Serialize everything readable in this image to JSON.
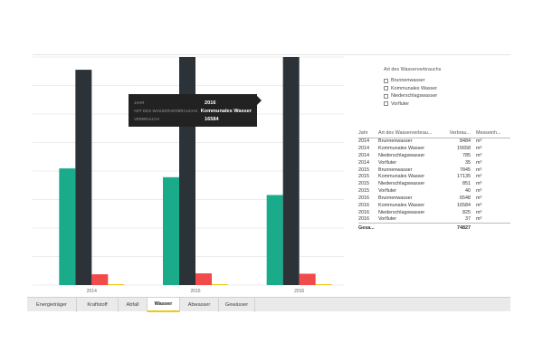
{
  "chart_data": {
    "type": "bar",
    "categories": [
      "2014",
      "2015",
      "2016"
    ],
    "series": [
      {
        "name": "Brunnenwasser",
        "color": "#1aab8b",
        "values": [
          8484,
          7845,
          6548
        ]
      },
      {
        "name": "Kommunales Wasser",
        "color": "#2b3338",
        "values": [
          15658,
          17135,
          16584
        ]
      },
      {
        "name": "Niederschlagswasser",
        "color": "#f04a4a",
        "values": [
          785,
          851,
          825
        ]
      },
      {
        "name": "Vorfluter",
        "color": "#f2c811",
        "values": [
          35,
          40,
          37
        ]
      }
    ],
    "ylim": [
      0,
      16584
    ],
    "grid": true
  },
  "tooltip": {
    "rows": [
      {
        "label": "JAHR",
        "value": "2016"
      },
      {
        "label": "ART DES WASSERVERBRAUCHS",
        "value": "Kommunales Wasser"
      },
      {
        "label": "VERBRAUCH",
        "value": "16584"
      }
    ]
  },
  "slicer": {
    "title": "Art des Wasserverbrauchs",
    "items": [
      "Brunnenwasser",
      "Kommunales Wasser",
      "Niederschlagswasser",
      "Vorfluter"
    ]
  },
  "table": {
    "headers": [
      "Jahr",
      "Art des Wasserverbrau...",
      "Verbrau...",
      "Messeinh..."
    ],
    "rows": [
      [
        "2014",
        "Brunnenwasser",
        "8484",
        "m³"
      ],
      [
        "2014",
        "Kommunales Wasser",
        "15658",
        "m³"
      ],
      [
        "2014",
        "Niederschlagswasser",
        "785",
        "m³"
      ],
      [
        "2014",
        "Vorfluter",
        "35",
        "m³"
      ],
      [
        "2015",
        "Brunnenwasser",
        "7845",
        "m³"
      ],
      [
        "2015",
        "Kommunales Wasser",
        "17135",
        "m³"
      ],
      [
        "2015",
        "Niederschlagswasser",
        "851",
        "m³"
      ],
      [
        "2015",
        "Vorfluter",
        "40",
        "m³"
      ],
      [
        "2016",
        "Brunnenwasser",
        "6548",
        "m³"
      ],
      [
        "2016",
        "Kommunales Wasser",
        "16584",
        "m³"
      ],
      [
        "2016",
        "Niederschlagswasser",
        "825",
        "m³"
      ],
      [
        "2016",
        "Vorfluter",
        "37",
        "m³"
      ]
    ],
    "total_label": "Gesa...",
    "total_value": "74827"
  },
  "tabs": [
    {
      "label": "Energieträger",
      "active": false
    },
    {
      "label": "Kraftstoff",
      "active": false
    },
    {
      "label": "Abfall",
      "active": false
    },
    {
      "label": "Wasser",
      "active": true
    },
    {
      "label": "Abwasser",
      "active": false
    },
    {
      "label": "Gewässer",
      "active": false
    }
  ]
}
